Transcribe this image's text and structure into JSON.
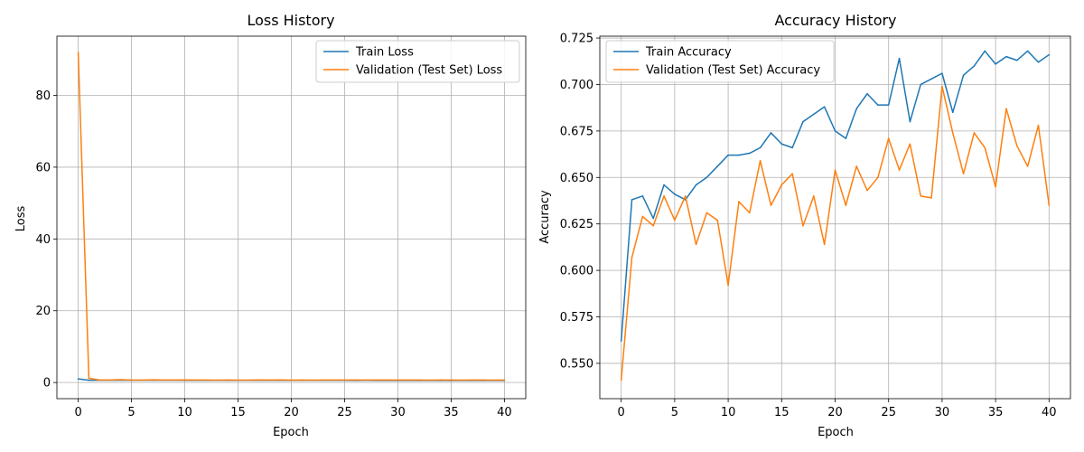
{
  "chart_data": [
    {
      "type": "line",
      "title": "Loss History",
      "xlabel": "Epoch",
      "ylabel": "Loss",
      "xlim": [
        -2,
        42
      ],
      "ylim": [
        -4.5,
        96.5
      ],
      "xticks": [
        0,
        5,
        10,
        15,
        20,
        25,
        30,
        35,
        40
      ],
      "yticks": [
        0,
        20,
        40,
        60,
        80
      ],
      "ytick_labels": [
        "0",
        "20",
        "40",
        "60",
        "80"
      ],
      "grid": true,
      "legend_position": "top-right",
      "x": [
        0,
        1,
        2,
        3,
        4,
        5,
        6,
        7,
        8,
        9,
        10,
        11,
        12,
        13,
        14,
        15,
        16,
        17,
        18,
        19,
        20,
        21,
        22,
        23,
        24,
        25,
        26,
        27,
        28,
        29,
        30,
        31,
        32,
        33,
        34,
        35,
        36,
        37,
        38,
        39,
        40
      ],
      "series": [
        {
          "name": "Train Loss",
          "color": "#1f77b4",
          "values": [
            1.0,
            0.64,
            0.63,
            0.64,
            0.63,
            0.63,
            0.63,
            0.62,
            0.62,
            0.62,
            0.61,
            0.61,
            0.61,
            0.61,
            0.6,
            0.6,
            0.6,
            0.6,
            0.6,
            0.6,
            0.6,
            0.59,
            0.59,
            0.59,
            0.59,
            0.59,
            0.58,
            0.59,
            0.58,
            0.58,
            0.58,
            0.58,
            0.58,
            0.57,
            0.57,
            0.57,
            0.57,
            0.57,
            0.57,
            0.57,
            0.57
          ]
        },
        {
          "name": "Validation (Test Set) Loss",
          "color": "#ff7f0e",
          "values": [
            92.0,
            1.2,
            0.7,
            0.7,
            0.8,
            0.68,
            0.67,
            0.75,
            0.7,
            0.7,
            0.74,
            0.7,
            0.69,
            0.67,
            0.69,
            0.67,
            0.67,
            0.72,
            0.68,
            0.74,
            0.66,
            0.7,
            0.67,
            0.69,
            0.7,
            0.68,
            0.68,
            0.68,
            0.7,
            0.7,
            0.68,
            0.68,
            0.7,
            0.66,
            0.7,
            0.68,
            0.66,
            0.68,
            0.7,
            0.66,
            0.69
          ]
        }
      ]
    },
    {
      "type": "line",
      "title": "Accuracy History",
      "xlabel": "Epoch",
      "ylabel": "Accuracy",
      "xlim": [
        -2,
        42
      ],
      "ylim": [
        0.531,
        0.726
      ],
      "xticks": [
        0,
        5,
        10,
        15,
        20,
        25,
        30,
        35,
        40
      ],
      "yticks": [
        0.55,
        0.575,
        0.6,
        0.625,
        0.65,
        0.675,
        0.7,
        0.725
      ],
      "ytick_labels": [
        "0.550",
        "0.575",
        "0.600",
        "0.625",
        "0.650",
        "0.675",
        "0.700",
        "0.725"
      ],
      "grid": true,
      "legend_position": "top-left",
      "x": [
        0,
        1,
        2,
        3,
        4,
        5,
        6,
        7,
        8,
        9,
        10,
        11,
        12,
        13,
        14,
        15,
        16,
        17,
        18,
        19,
        20,
        21,
        22,
        23,
        24,
        25,
        26,
        27,
        28,
        29,
        30,
        31,
        32,
        33,
        34,
        35,
        36,
        37,
        38,
        39,
        40
      ],
      "series": [
        {
          "name": "Train Accuracy",
          "color": "#1f77b4",
          "values": [
            0.562,
            0.638,
            0.64,
            0.628,
            0.646,
            0.641,
            0.638,
            0.646,
            0.65,
            0.656,
            0.662,
            0.662,
            0.663,
            0.666,
            0.674,
            0.668,
            0.666,
            0.68,
            0.684,
            0.688,
            0.675,
            0.671,
            0.687,
            0.695,
            0.689,
            0.689,
            0.714,
            0.68,
            0.7,
            0.703,
            0.706,
            0.685,
            0.705,
            0.71,
            0.718,
            0.711,
            0.715,
            0.713,
            0.718,
            0.712,
            0.716
          ]
        },
        {
          "name": "Validation (Test Set) Accuracy",
          "color": "#ff7f0e",
          "values": [
            0.541,
            0.607,
            0.629,
            0.624,
            0.64,
            0.627,
            0.64,
            0.614,
            0.631,
            0.627,
            0.592,
            0.637,
            0.631,
            0.659,
            0.635,
            0.646,
            0.652,
            0.624,
            0.64,
            0.614,
            0.654,
            0.635,
            0.656,
            0.643,
            0.65,
            0.671,
            0.654,
            0.668,
            0.64,
            0.639,
            0.699,
            0.674,
            0.652,
            0.674,
            0.666,
            0.645,
            0.687,
            0.667,
            0.656,
            0.678,
            0.635
          ]
        }
      ]
    }
  ]
}
